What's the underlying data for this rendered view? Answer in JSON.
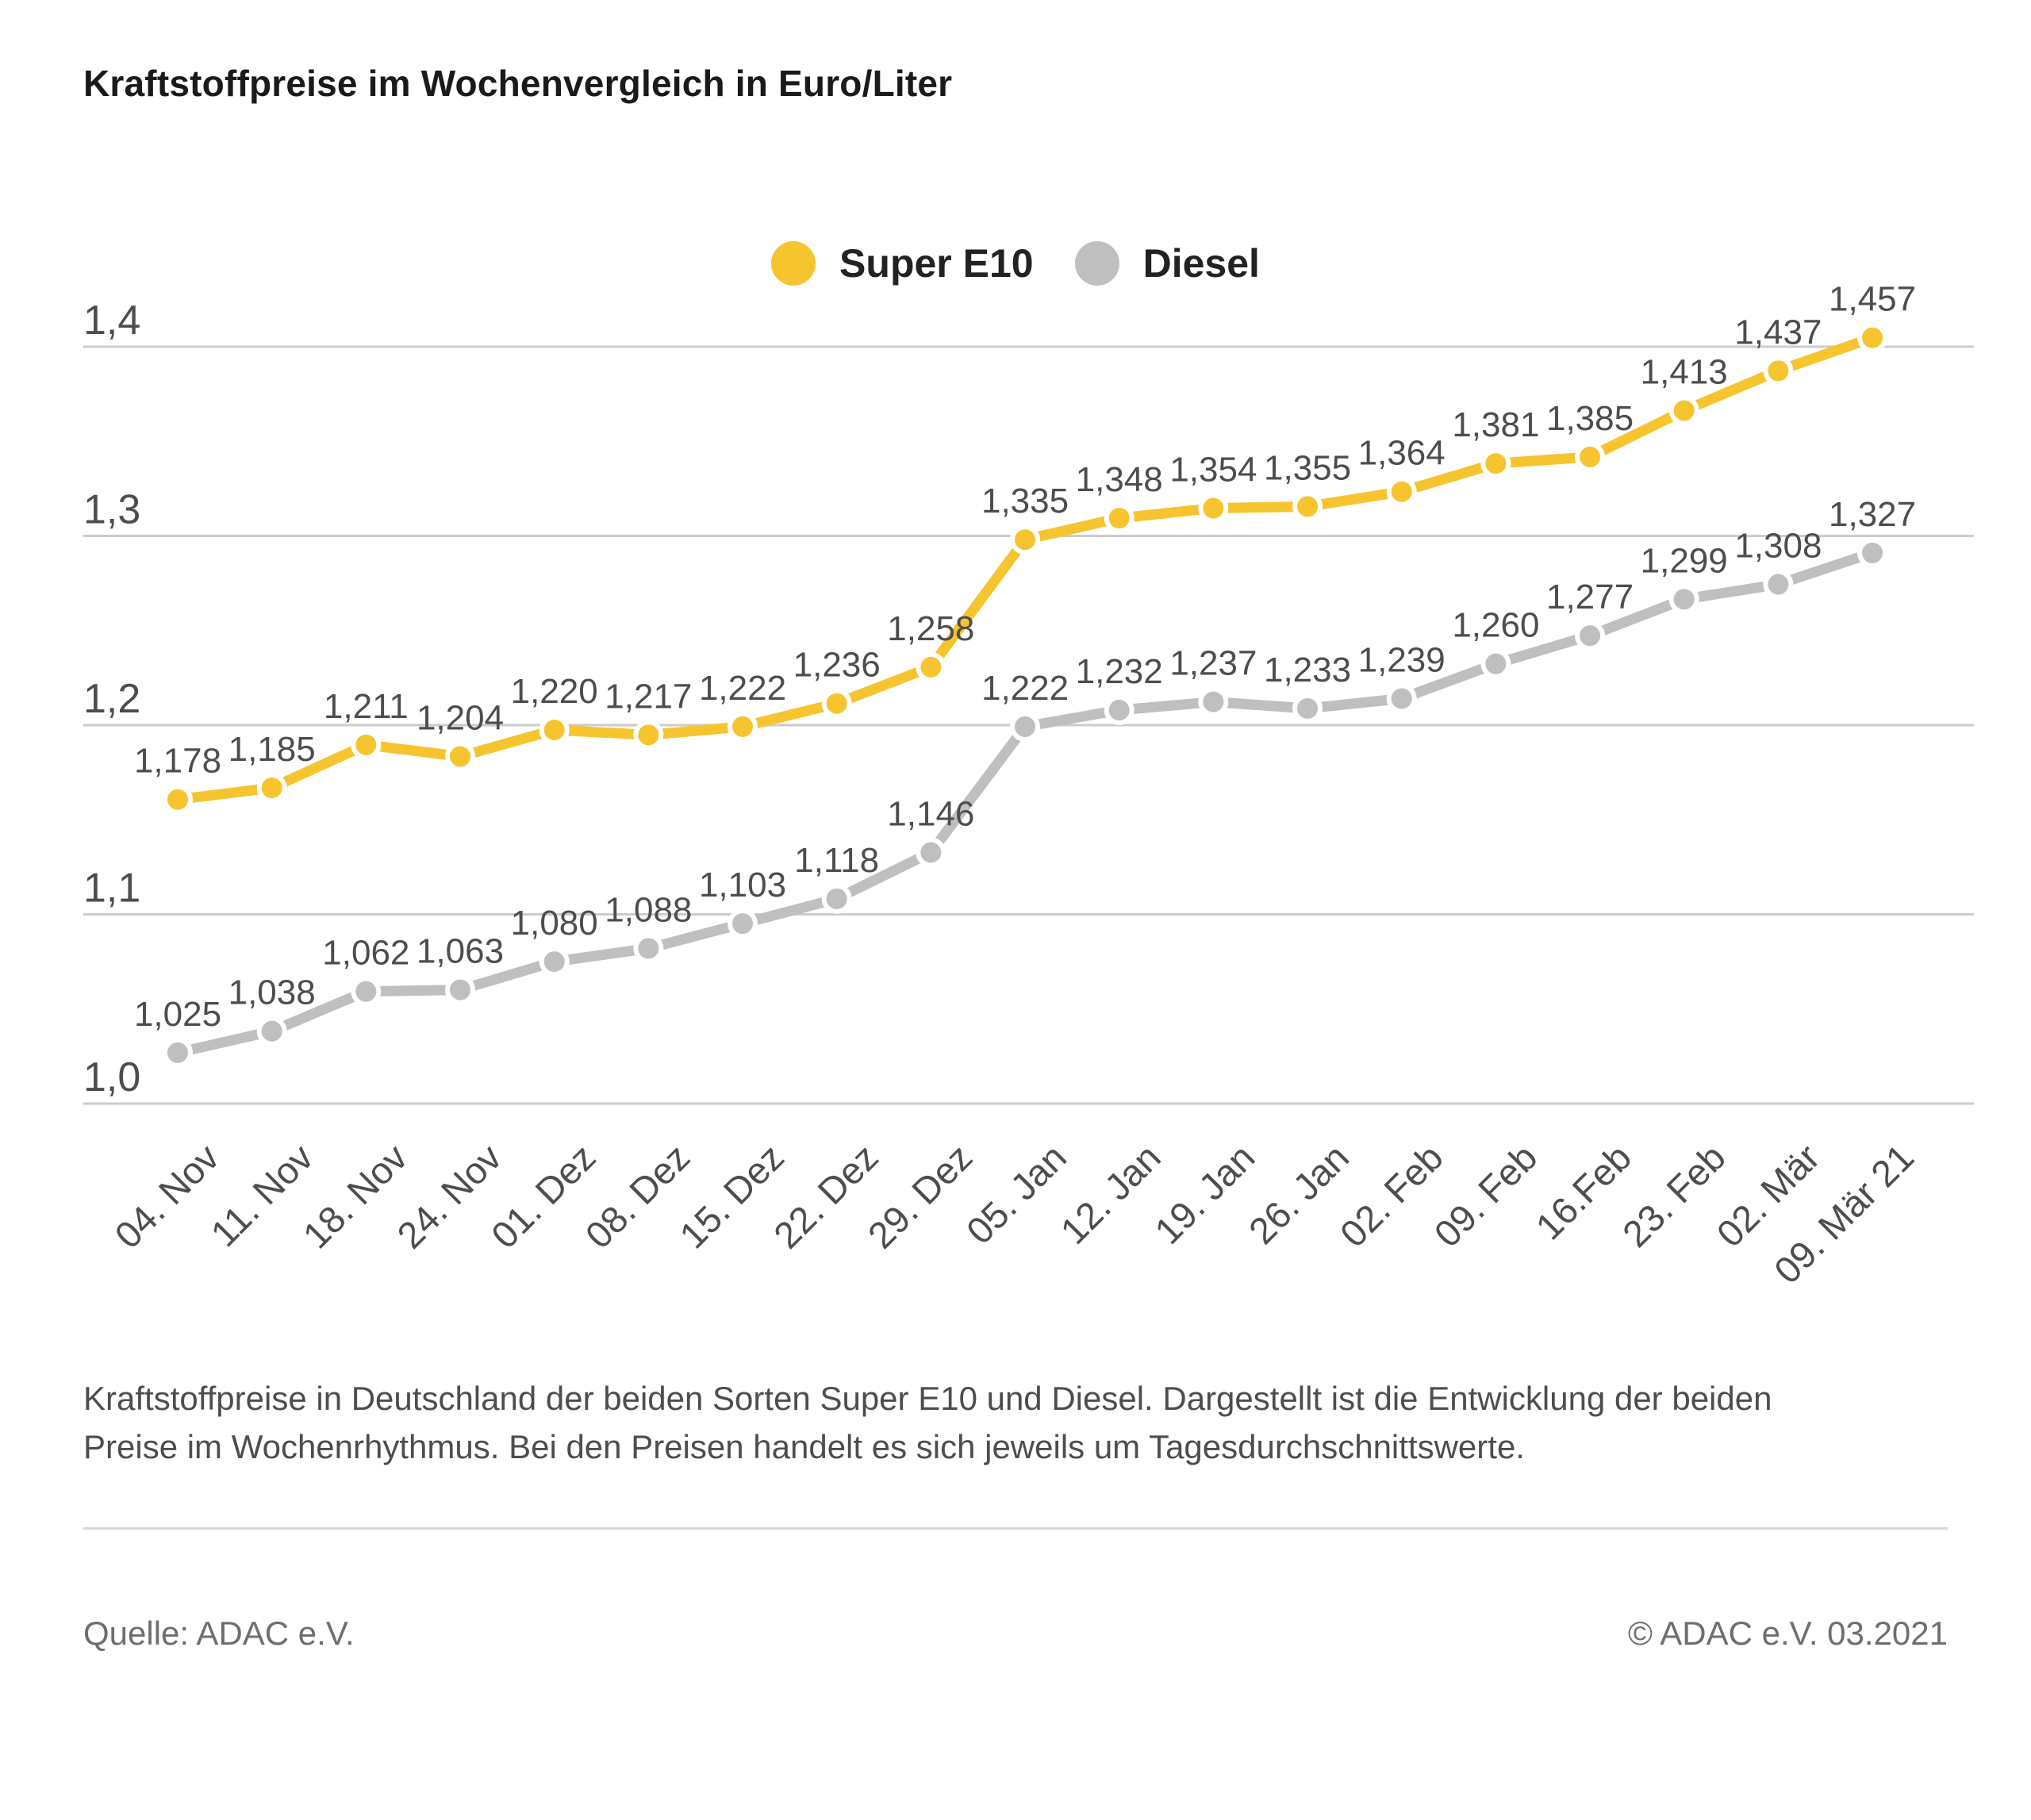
{
  "title": "Kraftstoffpreise im Wochenvergleich in Euro/Liter",
  "legend": {
    "items": [
      {
        "label": "Super E10",
        "color": "#F6C42F"
      },
      {
        "label": "Diesel",
        "color": "#BFBFBF"
      }
    ]
  },
  "chart_data": {
    "type": "line",
    "categories": [
      "04. Nov",
      "11. Nov",
      "18. Nov",
      "24. Nov",
      "01. Dez",
      "08. Dez",
      "15. Dez",
      "22. Dez",
      "29. Dez",
      "05. Jan",
      "12. Jan",
      "19. Jan",
      "26. Jan",
      "02. Feb",
      "09. Feb",
      "16.Feb",
      "23. Feb",
      "02. Mär",
      "09. Mär 21"
    ],
    "series": [
      {
        "name": "Super E10",
        "color": "#F6C42F",
        "values": [
          1.178,
          1.185,
          1.211,
          1.204,
          1.22,
          1.217,
          1.222,
          1.236,
          1.258,
          1.335,
          1.348,
          1.354,
          1.355,
          1.364,
          1.381,
          1.385,
          1.413,
          1.437,
          1.457
        ]
      },
      {
        "name": "Diesel",
        "color": "#BFBFBF",
        "values": [
          1.025,
          1.038,
          1.062,
          1.063,
          1.08,
          1.088,
          1.103,
          1.118,
          1.146,
          1.222,
          1.232,
          1.237,
          1.233,
          1.239,
          1.26,
          1.277,
          1.299,
          1.308,
          1.327
        ]
      }
    ],
    "y_ticks": [
      {
        "label": "1,0",
        "value": 1.0
      },
      {
        "label": "1,1",
        "value": 1.1
      },
      {
        "label": "1,2",
        "value": 1.2
      },
      {
        "label": "1,3",
        "value": 1.3
      },
      {
        "label": "1,4",
        "value": 1.4
      }
    ],
    "unit": "Euro/Liter",
    "grid": true,
    "legend_position": "top-center",
    "decimal_separator": ","
  },
  "description": "Kraftstoffpreise in Deutschland der beiden Sorten Super E10 und Diesel. Dargestellt ist die Entwicklung der beiden Preise im Wochenrhythmus. Bei den Preisen handelt es sich jeweils um Tagesdurchschnittswerte.",
  "footer": {
    "source": "Quelle: ADAC e.V.",
    "copyright": "© ADAC e.V. 03.2021"
  },
  "colors": {
    "super_e10": "#F6C42F",
    "diesel": "#BFBFBF",
    "gridline": "#cccccc",
    "data_label": "#4d4d4d",
    "axis_label": "#4d4d4d",
    "title": "#1a1a1a",
    "background": "#ffffff"
  }
}
